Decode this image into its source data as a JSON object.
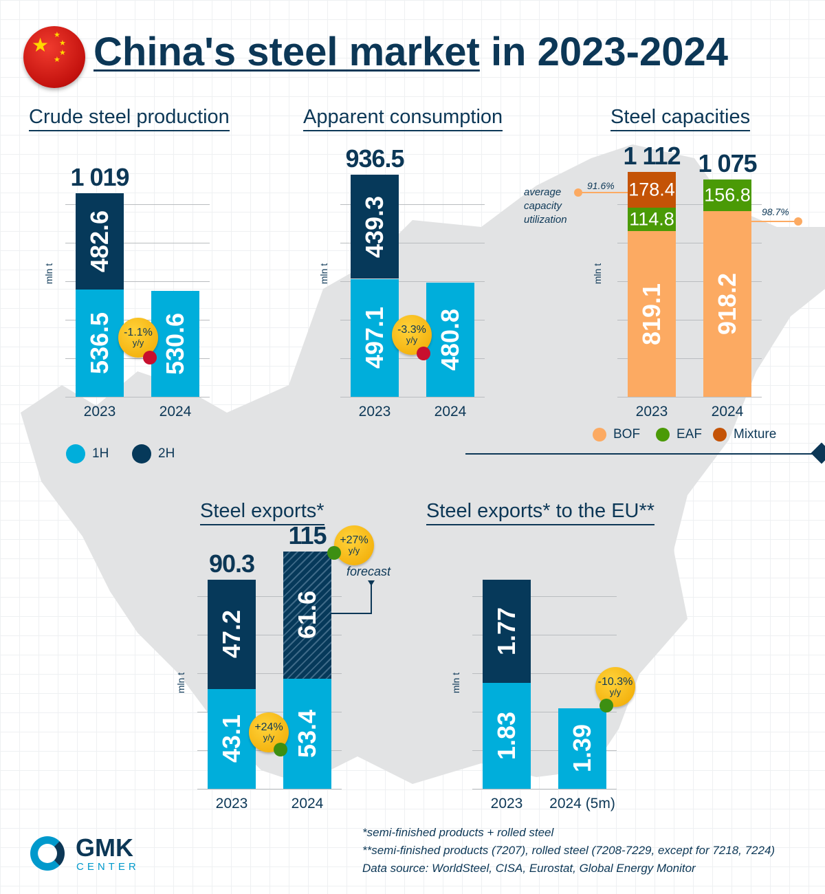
{
  "title": {
    "part1": "China's steel market",
    "part2": " in 2023-2024"
  },
  "unit": "mln t",
  "legend_halves": [
    {
      "label": "1H",
      "color": "#00aedb"
    },
    {
      "label": "2H",
      "color": "#06395a"
    }
  ],
  "legend_types": [
    {
      "label": "BOF",
      "color": "#fcaa62"
    },
    {
      "label": "EAF",
      "color": "#4a9a06"
    },
    {
      "label": "Mixture",
      "color": "#c45306"
    }
  ],
  "utilization": {
    "label": "average capacity utilization",
    "values": [
      "91.6%",
      "98.7%"
    ]
  },
  "forecast_label": "forecast",
  "footnotes": [
    "*semi-finished products + rolled steel",
    "**semi-finished products (7207), rolled steel (7208-7229, except for 7218, 7224)",
    "Data source: WorldSteel, CISA, Eurostat, Global Energy Monitor"
  ],
  "logo": {
    "name": "GMK",
    "sub": "CENTER"
  },
  "chart_data": [
    {
      "type": "bar",
      "stacked": true,
      "title": "Crude steel production",
      "ylabel": "mln t",
      "categories": [
        "2023",
        "2024"
      ],
      "totals": [
        "1 019",
        ""
      ],
      "series": [
        {
          "name": "1H",
          "color": "#00aedb",
          "values": [
            536.5,
            530.6
          ]
        },
        {
          "name": "2H",
          "color": "#06395a",
          "values": [
            482.6,
            null
          ]
        }
      ],
      "change": {
        "text": "-1.1%",
        "sub": "y/y",
        "dot": "#c8102e"
      }
    },
    {
      "type": "bar",
      "stacked": true,
      "title": "Apparent consumption",
      "ylabel": "mln t",
      "categories": [
        "2023",
        "2024"
      ],
      "totals": [
        "936.5",
        ""
      ],
      "series": [
        {
          "name": "1H",
          "color": "#00aedb",
          "values": [
            497.1,
            480.8
          ]
        },
        {
          "name": "2H",
          "color": "#06395a",
          "values": [
            439.3,
            null
          ]
        }
      ],
      "change": {
        "text": "-3.3%",
        "sub": "y/y",
        "dot": "#c8102e"
      }
    },
    {
      "type": "bar",
      "stacked": true,
      "title": "Steel capacities",
      "ylabel": "mln t",
      "categories": [
        "2023",
        "2024"
      ],
      "totals": [
        "1 112",
        "1 075"
      ],
      "series": [
        {
          "name": "BOF",
          "color": "#fcaa62",
          "values": [
            819.1,
            918.2
          ]
        },
        {
          "name": "EAF",
          "color": "#4a9a06",
          "values": [
            114.8,
            156.8
          ]
        },
        {
          "name": "Mixture",
          "color": "#c45306",
          "values": [
            178.4,
            null
          ]
        }
      ]
    },
    {
      "type": "bar",
      "stacked": true,
      "title": "Steel exports*",
      "ylabel": "mln t",
      "categories": [
        "2023",
        "2024"
      ],
      "totals": [
        "90.3",
        "115"
      ],
      "series": [
        {
          "name": "1H",
          "color": "#00aedb",
          "values": [
            43.1,
            53.4
          ]
        },
        {
          "name": "2H",
          "color": "#06395a",
          "values": [
            47.2,
            61.6
          ],
          "forecast": [
            false,
            true
          ]
        }
      ],
      "change": {
        "text": "+24%",
        "sub": "y/y",
        "dot": "#3d8f12"
      },
      "change2": {
        "text": "+27%",
        "sub": "y/y",
        "dot": "#3d8f12"
      }
    },
    {
      "type": "bar",
      "stacked": true,
      "title": "Steel exports* to the EU**",
      "ylabel": "mln t",
      "categories": [
        "2023",
        "2024 (5m)"
      ],
      "totals": [
        "",
        ""
      ],
      "series": [
        {
          "name": "1H",
          "color": "#00aedb",
          "values": [
            1.83,
            1.39
          ]
        },
        {
          "name": "2H",
          "color": "#06395a",
          "values": [
            1.77,
            null
          ]
        }
      ],
      "change": {
        "text": "-10.3%",
        "sub": "y/y",
        "dot": "#3d8f12"
      }
    }
  ]
}
